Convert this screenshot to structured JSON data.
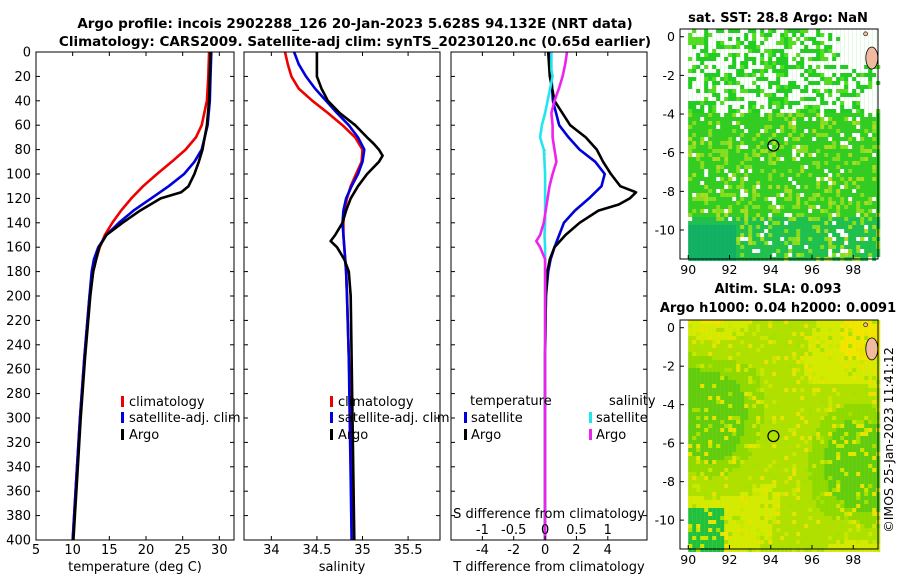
{
  "figure": {
    "title_line1": "Argo profile: incois 2902288_126 20-Jan-2023 5.628S 94.132E (NRT data)",
    "title_line2": "Climatology: CARS2009. Satellite-adj clim: synTS_20230120.nc (0.65d earlier)",
    "watermark": "©IMOS 25-Jan-2023 11:41:12"
  },
  "colors": {
    "clim": "#ee0000",
    "sat": "#0000dd",
    "argo": "#000000",
    "cyan": "#22e5f0",
    "magenta": "#ee22ee"
  },
  "chart_data": [
    {
      "id": "temperature",
      "type": "line",
      "xlabel": "temperature (deg C)",
      "ylabel": "",
      "xlim": [
        5,
        32
      ],
      "ylim": [
        400,
        0
      ],
      "xticks": [
        5,
        10,
        15,
        20,
        25,
        30
      ],
      "yticks": [
        0,
        20,
        40,
        60,
        80,
        100,
        120,
        140,
        160,
        180,
        200,
        220,
        240,
        260,
        280,
        300,
        320,
        340,
        360,
        380,
        400
      ],
      "legend": [
        "climatology",
        "satellite-adj. clim",
        "Argo"
      ],
      "series": [
        {
          "name": "climatology",
          "color": "clim",
          "depth": [
            0,
            20,
            40,
            60,
            70,
            80,
            90,
            100,
            110,
            120,
            130,
            140,
            150,
            160,
            170,
            180,
            200,
            250,
            300,
            350,
            400
          ],
          "values": [
            28.6,
            28.5,
            28.3,
            27.6,
            26.8,
            25.4,
            23.5,
            21.5,
            19.6,
            18.0,
            16.6,
            15.4,
            14.4,
            13.7,
            13.2,
            12.8,
            12.3,
            11.6,
            11.0,
            10.5,
            10.0
          ]
        },
        {
          "name": "satellite-adj. clim",
          "color": "sat",
          "depth": [
            0,
            20,
            40,
            60,
            80,
            90,
            100,
            110,
            120,
            130,
            140,
            150,
            160,
            170,
            180,
            200,
            250,
            300,
            350,
            400
          ],
          "values": [
            28.9,
            28.8,
            28.7,
            28.4,
            27.6,
            26.6,
            25.2,
            23.1,
            20.7,
            18.3,
            16.3,
            14.6,
            13.5,
            12.9,
            12.6,
            12.3,
            11.6,
            11.0,
            10.5,
            10.0
          ]
        },
        {
          "name": "Argo",
          "color": "argo",
          "depth": [
            0,
            20,
            40,
            60,
            80,
            90,
            100,
            110,
            115,
            120,
            130,
            140,
            150,
            160,
            180,
            200,
            250,
            300,
            350,
            400
          ],
          "values": [
            28.8,
            28.7,
            28.6,
            28.3,
            27.7,
            27.2,
            26.6,
            25.8,
            24.8,
            22.0,
            19.2,
            16.8,
            14.6,
            13.6,
            12.8,
            12.4,
            11.7,
            11.1,
            10.6,
            10.1
          ]
        }
      ]
    },
    {
      "id": "salinity",
      "type": "line",
      "xlabel": "salinity",
      "xlim": [
        33.7,
        35.85
      ],
      "ylim": [
        400,
        0
      ],
      "xticks": [
        34,
        34.5,
        35,
        35.5
      ],
      "legend": [
        "climatology",
        "satellite-adj. clim",
        "Argo"
      ],
      "series": [
        {
          "name": "climatology",
          "color": "clim",
          "depth": [
            0,
            10,
            20,
            30,
            40,
            50,
            60,
            70,
            80,
            90,
            100,
            110,
            120,
            130,
            140,
            150,
            160,
            180,
            200,
            250,
            300,
            350,
            400
          ],
          "values": [
            34.15,
            34.18,
            34.22,
            34.3,
            34.45,
            34.62,
            34.78,
            34.92,
            35.0,
            34.99,
            34.93,
            34.87,
            34.83,
            34.8,
            34.79,
            34.79,
            34.8,
            34.82,
            34.83,
            34.85,
            34.87,
            34.88,
            34.89
          ]
        },
        {
          "name": "satellite-adj. clim",
          "color": "sat",
          "depth": [
            0,
            10,
            20,
            30,
            40,
            50,
            60,
            70,
            80,
            90,
            100,
            110,
            120,
            130,
            140,
            150,
            160,
            180,
            200,
            250,
            300,
            350,
            400
          ],
          "values": [
            34.25,
            34.3,
            34.38,
            34.48,
            34.6,
            34.72,
            34.85,
            34.95,
            35.02,
            35.0,
            34.95,
            34.88,
            34.82,
            34.79,
            34.78,
            34.79,
            34.8,
            34.82,
            34.83,
            34.85,
            34.86,
            34.87,
            34.88
          ]
        },
        {
          "name": "Argo",
          "color": "argo",
          "depth": [
            0,
            10,
            20,
            30,
            40,
            50,
            60,
            70,
            75,
            80,
            85,
            90,
            100,
            110,
            120,
            130,
            140,
            150,
            155,
            160,
            170,
            180,
            200,
            250,
            300,
            350,
            400
          ],
          "values": [
            34.5,
            34.5,
            34.5,
            34.55,
            34.62,
            34.75,
            34.92,
            35.05,
            35.12,
            35.18,
            35.22,
            35.18,
            35.05,
            34.95,
            34.87,
            34.82,
            34.78,
            34.7,
            34.65,
            34.72,
            34.8,
            34.85,
            34.87,
            34.88,
            34.89,
            34.9,
            34.91
          ]
        }
      ]
    },
    {
      "id": "differences",
      "type": "line",
      "xlabel": "T difference from climatology",
      "xlabel_top": "S difference from climatology",
      "xlim": [
        -6,
        6.5
      ],
      "ylim": [
        400,
        0
      ],
      "xticks": [
        -4,
        -2,
        0,
        2,
        4
      ],
      "xticks_s": [
        -1,
        -0.5,
        0,
        0.5,
        1
      ],
      "legend_temperature_title": "temperature",
      "legend_salinity_title": "salinity",
      "legend_labels": [
        "satellite",
        "Argo",
        "satellite",
        "Argo"
      ],
      "series": [
        {
          "name": "temperature satellite",
          "color": "sat",
          "axis": "T",
          "depth": [
            0,
            20,
            40,
            60,
            70,
            80,
            90,
            100,
            110,
            120,
            130,
            140,
            150,
            160,
            170,
            180,
            200,
            250,
            300,
            350,
            400
          ],
          "values": [
            0.3,
            0.4,
            0.5,
            0.9,
            1.5,
            2.2,
            3.2,
            3.8,
            3.6,
            2.8,
            1.9,
            1.2,
            0.9,
            0.6,
            0.35,
            0.2,
            0.05,
            0.0,
            0.0,
            0.0,
            0.0
          ]
        },
        {
          "name": "temperature Argo",
          "color": "argo",
          "axis": "T",
          "depth": [
            0,
            20,
            40,
            60,
            70,
            80,
            90,
            100,
            110,
            115,
            120,
            125,
            130,
            140,
            150,
            160,
            170,
            180,
            200,
            250,
            300,
            350,
            400
          ],
          "values": [
            0.2,
            0.3,
            0.6,
            1.6,
            2.6,
            3.3,
            3.7,
            4.2,
            4.8,
            5.8,
            5.4,
            4.7,
            3.4,
            2.2,
            1.3,
            0.6,
            0.3,
            0.15,
            0.05,
            0.0,
            0.0,
            0.0,
            0.0
          ]
        },
        {
          "name": "salinity satellite",
          "color": "cyan",
          "axis": "S",
          "depth": [
            0,
            15,
            20,
            30,
            40,
            50,
            60,
            70,
            80,
            90,
            100,
            120,
            140,
            150,
            160,
            180,
            200,
            250,
            300,
            350,
            400
          ],
          "values": [
            0.1,
            0.1,
            0.12,
            0.08,
            0.04,
            0.0,
            -0.05,
            -0.08,
            -0.02,
            -0.01,
            0.0,
            0.0,
            0.0,
            -0.01,
            0.0,
            0.0,
            0.0,
            0.0,
            0.0,
            0.0,
            0.0
          ]
        },
        {
          "name": "salinity Argo",
          "color": "magenta",
          "axis": "S",
          "depth": [
            0,
            10,
            20,
            30,
            40,
            50,
            60,
            70,
            80,
            90,
            100,
            110,
            120,
            140,
            150,
            155,
            160,
            170,
            180,
            200,
            250,
            300,
            350,
            400
          ],
          "values": [
            0.35,
            0.32,
            0.28,
            0.22,
            0.15,
            0.1,
            0.12,
            0.12,
            0.15,
            0.18,
            0.12,
            0.07,
            0.04,
            -0.02,
            -0.08,
            -0.14,
            -0.08,
            0.0,
            0.0,
            0.0,
            0.0,
            0.0,
            0.0,
            0.0
          ]
        }
      ]
    },
    {
      "id": "sst_map",
      "type": "heatmap",
      "title": "sat. SST: 28.8 Argo: NaN",
      "xlim": [
        89.6,
        99.2
      ],
      "ylim": [
        -11.5,
        0.4
      ],
      "xticks": [
        90,
        92,
        94,
        96,
        98
      ],
      "yticks": [
        0,
        -2,
        -4,
        -6,
        -8,
        -10
      ],
      "marker": {
        "lon": 94.13,
        "lat": -5.63
      }
    },
    {
      "id": "sla_map",
      "type": "heatmap",
      "title_line1": "Altim. SLA: 0.093",
      "title_line2": "Argo h1000: 0.04 h2000: 0.0091",
      "xlim": [
        89.6,
        99.2
      ],
      "ylim": [
        -11.5,
        0.4
      ],
      "xticks": [
        90,
        92,
        94,
        96,
        98
      ],
      "yticks": [
        0,
        -2,
        -4,
        -6,
        -8,
        -10
      ],
      "marker": {
        "lon": 94.13,
        "lat": -5.63
      }
    }
  ]
}
